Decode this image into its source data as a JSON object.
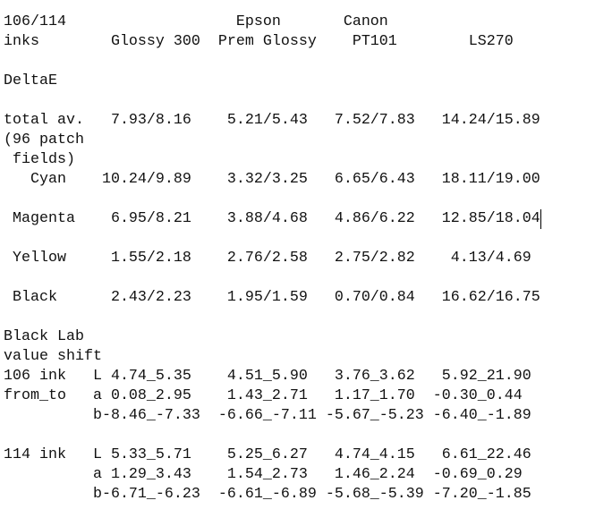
{
  "blocks": [
    [
      "106/114                   Epson       Canon",
      "inks        Glossy 300  Prem Glossy    PT101        LS270"
    ],
    [
      "DeltaE"
    ],
    [
      "total av.   7.93/8.16    5.21/5.43   7.52/7.83   14.24/15.89",
      "(96 patch",
      " fields)",
      "   Cyan    10.24/9.89    3.32/3.25   6.65/6.43   18.11/19.00"
    ],
    [
      " Magenta    6.95/8.21    3.88/4.68   4.86/6.22   12.85/18.04"
    ],
    [
      " Yellow     1.55/2.18    2.76/2.58   2.75/2.82    4.13/4.69"
    ],
    [
      " Black      2.43/2.23    1.95/1.59   0.70/0.84   16.62/16.75"
    ],
    [
      "Black Lab",
      "value shift",
      "106 ink   L 4.74_5.35    4.51_5.90   3.76_3.62   5.92_21.90",
      "from_to   a 0.08_2.95    1.43_2.71   1.17_1.70  -0.30_0.44",
      "          b-8.46_-7.33  -6.66_-7.11 -5.67_-5.23 -6.40_-1.89"
    ],
    [
      "114 ink   L 5.33_5.71    5.25_6.27   4.74_4.15   6.61_22.46",
      "          a 1.29_3.43    1.54_2.73   1.46_2.24  -0.69_0.29",
      "          b-6.71_-6.23  -6.61_-6.89 -5.68_-5.39 -7.20_-1.85"
    ]
  ]
}
